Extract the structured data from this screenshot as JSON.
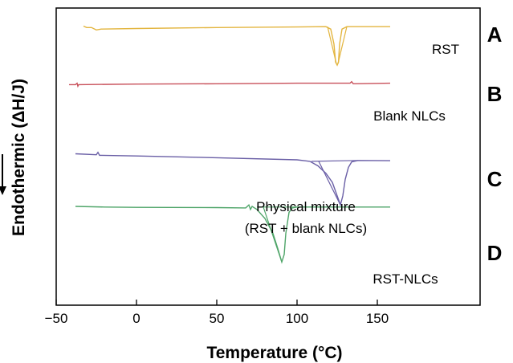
{
  "chart_data": {
    "type": "line",
    "title": "",
    "xlabel": "Temperature (°C)",
    "ylabel": "Endothermic (ΔH/J)",
    "xlim": [
      -50,
      160
    ],
    "xticks": [
      -50,
      0,
      50,
      100,
      150
    ],
    "xtick_labels": [
      "−50",
      "0",
      "50",
      "100",
      "150"
    ],
    "grid": false,
    "legend": "none",
    "colors": {
      "A": "#e3b53f",
      "B": "#c8505a",
      "C": "#6a5fa6",
      "D": "#4fa569"
    },
    "series": [
      {
        "id": "A",
        "letter": "A",
        "label": "RST",
        "baseline": 0.94,
        "points": [
          [
            -33,
            0.94
          ],
          [
            -31,
            0.935
          ],
          [
            -28,
            0.935
          ],
          [
            -25,
            0.927
          ],
          [
            -22,
            0.93
          ],
          [
            0,
            0.932
          ],
          [
            50,
            0.935
          ],
          [
            100,
            0.937
          ],
          [
            118,
            0.938
          ],
          [
            121,
            0.93
          ],
          [
            123,
            0.88
          ],
          [
            124,
            0.82
          ],
          [
            125,
            0.81
          ],
          [
            125.8,
            0.82
          ],
          [
            126.5,
            0.88
          ],
          [
            128,
            0.93
          ],
          [
            131,
            0.938
          ],
          [
            158,
            0.938
          ]
        ]
      },
      {
        "id": "B",
        "letter": "B",
        "label": "Blank NLCs",
        "baseline": 0.745,
        "points": [
          [
            -42,
            0.745
          ],
          [
            -38,
            0.745
          ],
          [
            -37,
            0.75
          ],
          [
            -36.5,
            0.74
          ],
          [
            -36,
            0.745
          ],
          [
            0,
            0.747
          ],
          [
            50,
            0.748
          ],
          [
            100,
            0.75
          ],
          [
            133,
            0.75
          ],
          [
            134,
            0.755
          ],
          [
            135,
            0.748
          ],
          [
            158,
            0.75
          ]
        ]
      },
      {
        "id": "C",
        "letter": "C",
        "label": "Physical mixture (RST + blank NLCs)",
        "baseline": 0.515,
        "points": [
          [
            -38,
            0.515
          ],
          [
            -25,
            0.512
          ],
          [
            -24,
            0.52
          ],
          [
            -23,
            0.51
          ],
          [
            0,
            0.508
          ],
          [
            50,
            0.502
          ],
          [
            100,
            0.495
          ],
          [
            108,
            0.49
          ],
          [
            113,
            0.475
          ],
          [
            118,
            0.45
          ],
          [
            122,
            0.42
          ],
          [
            125,
            0.375
          ],
          [
            127,
            0.345
          ],
          [
            128.5,
            0.375
          ],
          [
            130,
            0.43
          ],
          [
            132,
            0.47
          ],
          [
            134,
            0.488
          ],
          [
            138,
            0.493
          ],
          [
            158,
            0.492
          ]
        ]
      },
      {
        "id": "D",
        "letter": "D",
        "label": "RST-NLCs",
        "baseline": 0.34,
        "points": [
          [
            -38,
            0.34
          ],
          [
            -20,
            0.338
          ],
          [
            0,
            0.337
          ],
          [
            50,
            0.336
          ],
          [
            68,
            0.335
          ],
          [
            70,
            0.345
          ],
          [
            71,
            0.33
          ],
          [
            72,
            0.34
          ],
          [
            75,
            0.33
          ],
          [
            80,
            0.3
          ],
          [
            85,
            0.25
          ],
          [
            88,
            0.2
          ],
          [
            90.5,
            0.155
          ],
          [
            92,
            0.18
          ],
          [
            93,
            0.25
          ],
          [
            95,
            0.32
          ],
          [
            97,
            0.335
          ],
          [
            100,
            0.338
          ],
          [
            130,
            0.338
          ],
          [
            158,
            0.338
          ]
        ]
      }
    ],
    "onset_lines": [
      {
        "series": "A",
        "segments": [
          [
            [
              119,
              0.938
            ],
            [
              124.5,
              0.815
            ]
          ],
          [
            [
              131,
              0.938
            ],
            [
              125.5,
              0.815
            ]
          ]
        ]
      },
      {
        "series": "C",
        "segments": [
          [
            [
              109,
              0.49
            ],
            [
              138,
              0.493
            ]
          ],
          [
            [
              113.5,
              0.49
            ],
            [
              127,
              0.345
            ]
          ]
        ]
      },
      {
        "series": "D",
        "segments": [
          [
            [
              75,
              0.338
            ],
            [
              135,
              0.338
            ]
          ],
          [
            [
              79,
              0.338
            ],
            [
              90.5,
              0.155
            ]
          ]
        ]
      }
    ],
    "arrow": "down"
  }
}
